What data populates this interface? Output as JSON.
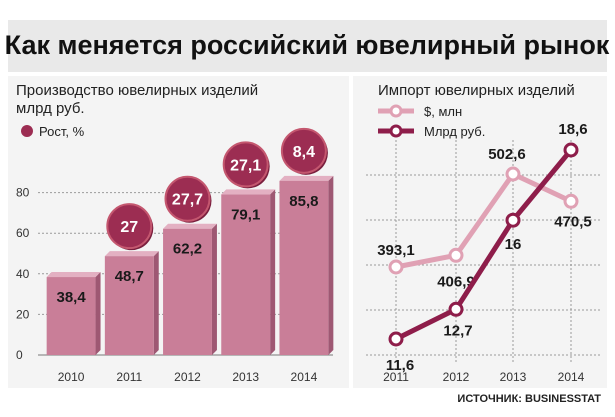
{
  "title": "Как меняется российский ювелирный рынок",
  "source": "ИСТОЧНИК: BUSINESSTAT",
  "colors": {
    "bar": "#c97e98",
    "bar_top": "#e3b0c2",
    "bar_shadow": "#9e5873",
    "badge": "#9c2d52",
    "badge_light": "#c4576f",
    "dollar_line": "#e0a1b4",
    "rub_line": "#8e1d4a",
    "title_bg": "#e9e9e9",
    "panel_bg": "#f4f4f4",
    "grid": "#9a9a9a"
  },
  "chart_data": [
    {
      "type": "bar",
      "title": "Производство ювелирных изделий",
      "subtitle": "млрд руб.",
      "categories": [
        "2010",
        "2011",
        "2012",
        "2013",
        "2014"
      ],
      "values": [
        38.4,
        48.7,
        62.2,
        79.1,
        85.8
      ],
      "value_labels": [
        "38,4",
        "48,7",
        "62,2",
        "79,1",
        "85,8"
      ],
      "growth": [
        null,
        27,
        27.7,
        27.1,
        8.4
      ],
      "growth_labels": [
        null,
        "27",
        "27,7",
        "27,1",
        "8,4"
      ],
      "growth_legend": "Рост, %",
      "yticks": [
        "0",
        "20",
        "40",
        "60",
        "80"
      ],
      "ylim": [
        0,
        100
      ],
      "grid": true
    },
    {
      "type": "line",
      "title": "Импорт ювелирных изделий",
      "x": [
        "2011",
        "2012",
        "2013",
        "2014"
      ],
      "series": [
        {
          "name": "$, млн",
          "values": [
            393.1,
            406.9,
            502.6,
            470.5
          ],
          "labels": [
            "393,1",
            "406,9",
            "502,6",
            "470,5"
          ]
        },
        {
          "name": "Млрд руб.",
          "values": [
            11.6,
            12.7,
            16,
            18.6
          ],
          "labels": [
            "11,6",
            "12,7",
            "16",
            "18,6"
          ]
        }
      ],
      "grid": true,
      "legend": "top-left"
    }
  ]
}
